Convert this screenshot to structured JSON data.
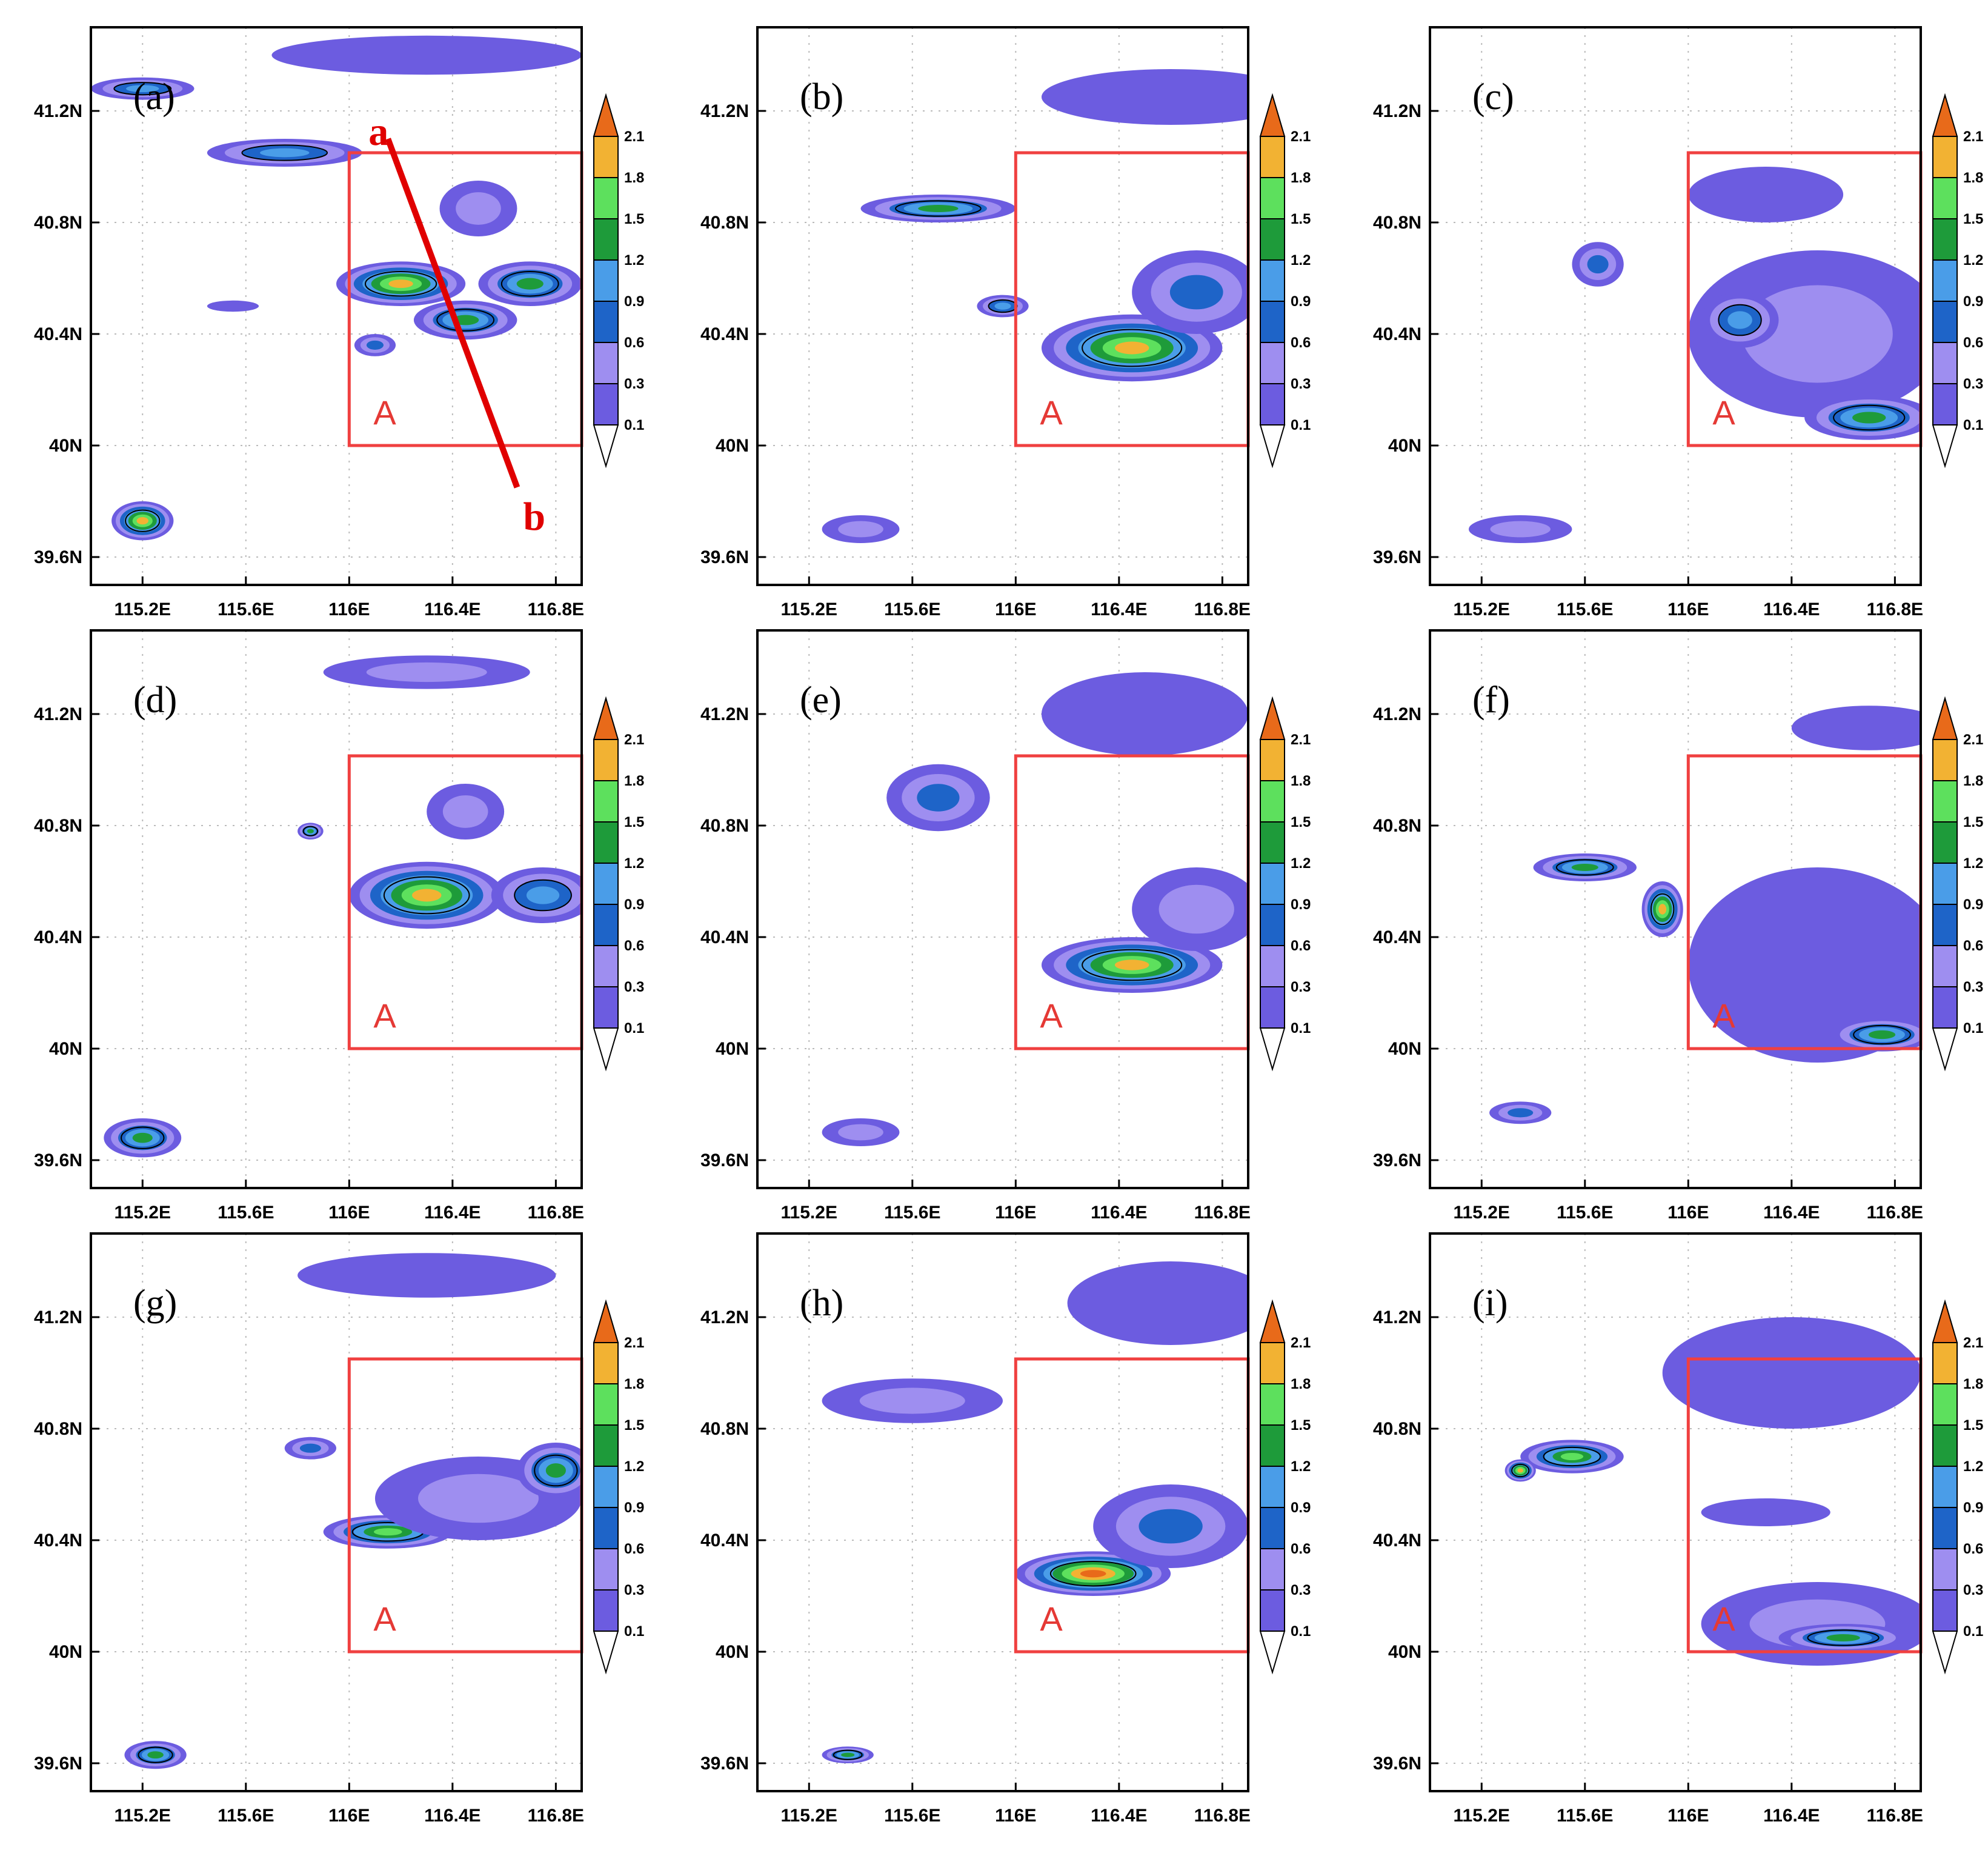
{
  "chart_data": {
    "type": "contour map",
    "layout": "3x3 grid of map panels",
    "lon_ticks": [
      "115.2E",
      "115.6E",
      "116E",
      "116.4E",
      "116.8E"
    ],
    "lon_values": [
      115.2,
      115.6,
      116.0,
      116.4,
      116.8
    ],
    "lat_ticks": [
      "41.2N",
      "40.8N",
      "40.4N",
      "40N",
      "39.6N"
    ],
    "lat_values": [
      41.2,
      40.8,
      40.4,
      40.0,
      39.6
    ],
    "xlim": [
      115.0,
      116.9
    ],
    "ylim": [
      39.5,
      41.5
    ],
    "grid": true,
    "region_box": {
      "label": "A",
      "lon": [
        116.0,
        116.9
      ],
      "lat": [
        40.0,
        41.05
      ]
    },
    "cross_section": {
      "panel": "(a)",
      "start_label": "a",
      "end_label": "b",
      "start": [
        116.15,
        41.1
      ],
      "end": [
        116.65,
        39.85
      ]
    },
    "colorbar": {
      "levels": [
        "0.1",
        "0.3",
        "0.6",
        "0.9",
        "1.2",
        "1.5",
        "1.8",
        "2.1"
      ],
      "colors": [
        "#ffffff",
        "#6c5ce0",
        "#9e8ef0",
        "#1e64c8",
        "#4a9de8",
        "#1e9b3a",
        "#5de05d",
        "#f2b233",
        "#e86a1a"
      ]
    },
    "panels": [
      {
        "label": "(a)",
        "features": [
          {
            "lon": 115.2,
            "lat": 41.28,
            "rx": 0.2,
            "ry": 0.04,
            "level": 4
          },
          {
            "lon": 115.75,
            "lat": 41.05,
            "rx": 0.3,
            "ry": 0.05,
            "level": 4
          },
          {
            "lon": 116.3,
            "lat": 41.4,
            "rx": 0.6,
            "ry": 0.07,
            "level": 1
          },
          {
            "lon": 116.2,
            "lat": 40.58,
            "rx": 0.25,
            "ry": 0.08,
            "level": 7
          },
          {
            "lon": 116.45,
            "lat": 40.45,
            "rx": 0.2,
            "ry": 0.07,
            "level": 5
          },
          {
            "lon": 116.7,
            "lat": 40.58,
            "rx": 0.2,
            "ry": 0.08,
            "level": 5
          },
          {
            "lon": 116.5,
            "lat": 40.85,
            "rx": 0.15,
            "ry": 0.1,
            "level": 2
          },
          {
            "lon": 115.2,
            "lat": 39.73,
            "rx": 0.12,
            "ry": 0.07,
            "level": 7
          },
          {
            "lon": 115.55,
            "lat": 40.5,
            "rx": 0.1,
            "ry": 0.02,
            "level": 1
          },
          {
            "lon": 116.1,
            "lat": 40.36,
            "rx": 0.08,
            "ry": 0.04,
            "level": 3
          }
        ]
      },
      {
        "label": "(b)",
        "features": [
          {
            "lon": 116.45,
            "lat": 40.35,
            "rx": 0.35,
            "ry": 0.12,
            "level": 7
          },
          {
            "lon": 116.7,
            "lat": 40.55,
            "rx": 0.25,
            "ry": 0.15,
            "level": 3
          },
          {
            "lon": 116.6,
            "lat": 41.25,
            "rx": 0.5,
            "ry": 0.1,
            "level": 1
          },
          {
            "lon": 115.7,
            "lat": 40.85,
            "rx": 0.3,
            "ry": 0.05,
            "level": 5
          },
          {
            "lon": 115.4,
            "lat": 39.7,
            "rx": 0.15,
            "ry": 0.05,
            "level": 2
          },
          {
            "lon": 115.95,
            "lat": 40.5,
            "rx": 0.1,
            "ry": 0.04,
            "level": 4
          }
        ]
      },
      {
        "label": "(c)",
        "features": [
          {
            "lon": 116.5,
            "lat": 40.4,
            "rx": 0.5,
            "ry": 0.3,
            "level": 2
          },
          {
            "lon": 116.7,
            "lat": 40.1,
            "rx": 0.25,
            "ry": 0.08,
            "level": 5
          },
          {
            "lon": 116.2,
            "lat": 40.45,
            "rx": 0.15,
            "ry": 0.1,
            "level": 4
          },
          {
            "lon": 116.3,
            "lat": 40.9,
            "rx": 0.3,
            "ry": 0.1,
            "level": 1
          },
          {
            "lon": 115.65,
            "lat": 40.65,
            "rx": 0.1,
            "ry": 0.08,
            "level": 3
          },
          {
            "lon": 115.35,
            "lat": 39.7,
            "rx": 0.2,
            "ry": 0.05,
            "level": 2
          }
        ]
      },
      {
        "label": "(d)",
        "features": [
          {
            "lon": 116.3,
            "lat": 40.55,
            "rx": 0.3,
            "ry": 0.12,
            "level": 7
          },
          {
            "lon": 116.75,
            "lat": 40.55,
            "rx": 0.2,
            "ry": 0.1,
            "level": 4
          },
          {
            "lon": 116.45,
            "lat": 40.85,
            "rx": 0.15,
            "ry": 0.1,
            "level": 2
          },
          {
            "lon": 116.3,
            "lat": 41.35,
            "rx": 0.4,
            "ry": 0.06,
            "level": 2
          },
          {
            "lon": 115.2,
            "lat": 39.68,
            "rx": 0.15,
            "ry": 0.07,
            "level": 5
          },
          {
            "lon": 115.85,
            "lat": 40.78,
            "rx": 0.05,
            "ry": 0.03,
            "level": 5
          }
        ]
      },
      {
        "label": "(e)",
        "features": [
          {
            "lon": 116.45,
            "lat": 40.3,
            "rx": 0.35,
            "ry": 0.1,
            "level": 7
          },
          {
            "lon": 116.7,
            "lat": 40.5,
            "rx": 0.25,
            "ry": 0.15,
            "level": 2
          },
          {
            "lon": 116.5,
            "lat": 41.2,
            "rx": 0.4,
            "ry": 0.15,
            "level": 1
          },
          {
            "lon": 115.7,
            "lat": 40.9,
            "rx": 0.2,
            "ry": 0.12,
            "level": 3
          },
          {
            "lon": 115.4,
            "lat": 39.7,
            "rx": 0.15,
            "ry": 0.05,
            "level": 2
          }
        ]
      },
      {
        "label": "(f)",
        "features": [
          {
            "lon": 116.5,
            "lat": 40.3,
            "rx": 0.5,
            "ry": 0.35,
            "level": 1
          },
          {
            "lon": 116.75,
            "lat": 40.05,
            "rx": 0.2,
            "ry": 0.06,
            "level": 5
          },
          {
            "lon": 115.9,
            "lat": 40.5,
            "rx": 0.08,
            "ry": 0.1,
            "level": 7
          },
          {
            "lon": 115.6,
            "lat": 40.65,
            "rx": 0.2,
            "ry": 0.05,
            "level": 5
          },
          {
            "lon": 116.7,
            "lat": 41.15,
            "rx": 0.3,
            "ry": 0.08,
            "level": 1
          },
          {
            "lon": 115.35,
            "lat": 39.77,
            "rx": 0.12,
            "ry": 0.04,
            "level": 3
          }
        ]
      },
      {
        "label": "(g)",
        "features": [
          {
            "lon": 116.15,
            "lat": 40.43,
            "rx": 0.25,
            "ry": 0.06,
            "level": 6
          },
          {
            "lon": 116.5,
            "lat": 40.55,
            "rx": 0.4,
            "ry": 0.15,
            "level": 2
          },
          {
            "lon": 116.8,
            "lat": 40.65,
            "rx": 0.15,
            "ry": 0.1,
            "level": 5
          },
          {
            "lon": 116.3,
            "lat": 41.35,
            "rx": 0.5,
            "ry": 0.08,
            "level": 1
          },
          {
            "lon": 115.25,
            "lat": 39.63,
            "rx": 0.12,
            "ry": 0.05,
            "level": 5
          },
          {
            "lon": 115.85,
            "lat": 40.73,
            "rx": 0.1,
            "ry": 0.04,
            "level": 3
          }
        ]
      },
      {
        "label": "(h)",
        "features": [
          {
            "lon": 116.3,
            "lat": 40.28,
            "rx": 0.3,
            "ry": 0.08,
            "level": 8
          },
          {
            "lon": 116.6,
            "lat": 40.45,
            "rx": 0.3,
            "ry": 0.15,
            "level": 3
          },
          {
            "lon": 116.6,
            "lat": 41.25,
            "rx": 0.4,
            "ry": 0.15,
            "level": 1
          },
          {
            "lon": 115.6,
            "lat": 40.9,
            "rx": 0.35,
            "ry": 0.08,
            "level": 2
          },
          {
            "lon": 115.35,
            "lat": 39.63,
            "rx": 0.1,
            "ry": 0.03,
            "level": 5
          }
        ]
      },
      {
        "label": "(i)",
        "features": [
          {
            "lon": 116.5,
            "lat": 40.1,
            "rx": 0.45,
            "ry": 0.15,
            "level": 2
          },
          {
            "lon": 116.6,
            "lat": 40.05,
            "rx": 0.25,
            "ry": 0.05,
            "level": 5
          },
          {
            "lon": 116.4,
            "lat": 41.0,
            "rx": 0.5,
            "ry": 0.2,
            "level": 1
          },
          {
            "lon": 115.55,
            "lat": 40.7,
            "rx": 0.2,
            "ry": 0.06,
            "level": 6
          },
          {
            "lon": 115.35,
            "lat": 40.65,
            "rx": 0.06,
            "ry": 0.04,
            "level": 7
          },
          {
            "lon": 116.3,
            "lat": 40.5,
            "rx": 0.25,
            "ry": 0.05,
            "level": 1
          }
        ]
      }
    ]
  }
}
